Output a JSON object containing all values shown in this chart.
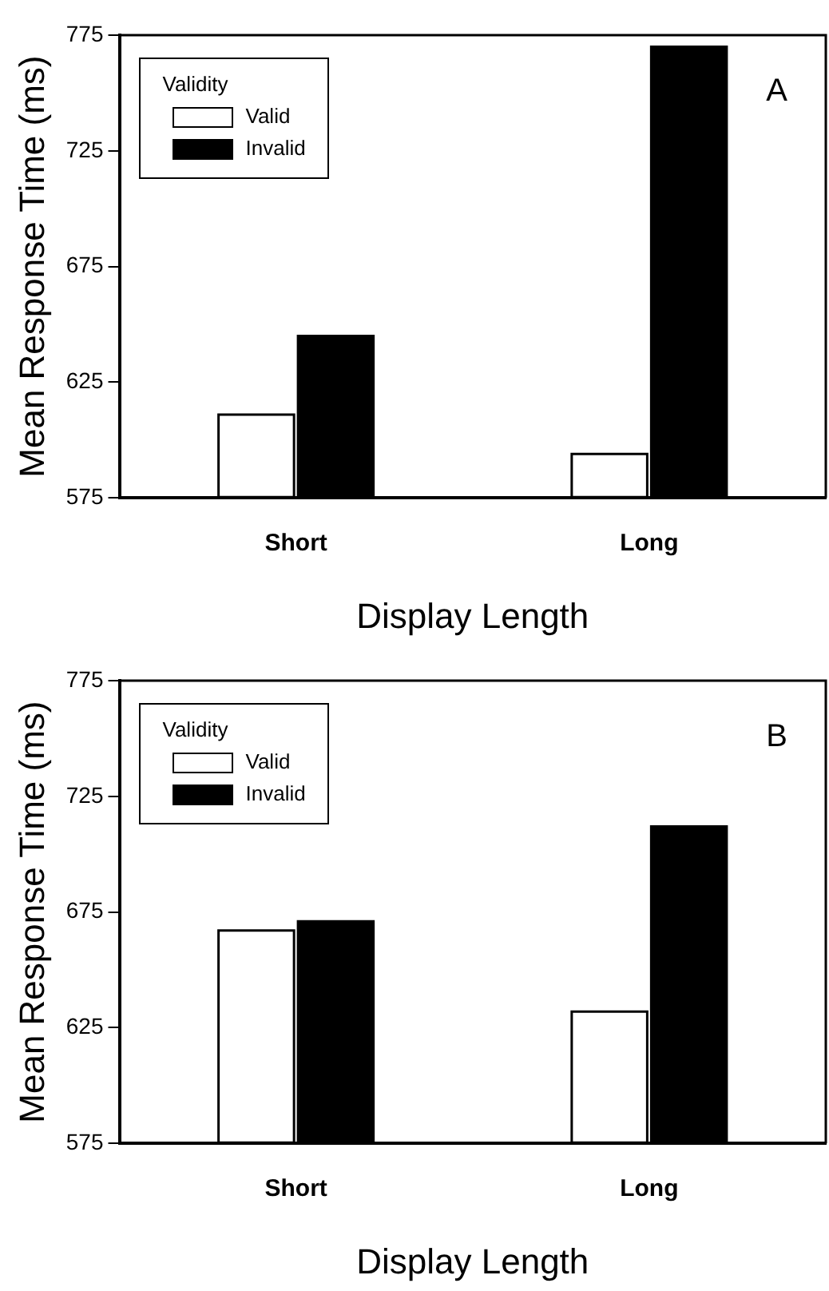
{
  "chart_data": [
    {
      "type": "bar",
      "categories": [
        "Short",
        "Long"
      ],
      "xlabel": "Display Length",
      "ylabel": "Mean Response Time (ms)",
      "legend_title": "Validity",
      "legend": "top left",
      "ylim": [
        575,
        775
      ],
      "yticks": [
        575,
        625,
        675,
        725,
        775
      ],
      "annotations": [
        "A"
      ],
      "series": [
        {
          "name": "Valid",
          "color": "#ffffff",
          "values": [
            611,
            594
          ]
        },
        {
          "name": "Invalid",
          "color": "#000000",
          "values": [
            645,
            770
          ]
        }
      ]
    },
    {
      "type": "bar",
      "categories": [
        "Short",
        "Long"
      ],
      "xlabel": "Display Length",
      "ylabel": "Mean Response Time (ms)",
      "legend_title": "Validity",
      "legend": "top left",
      "ylim": [
        575,
        775
      ],
      "yticks": [
        575,
        625,
        675,
        725,
        775
      ],
      "annotations": [
        "B"
      ],
      "series": [
        {
          "name": "Valid",
          "color": "#ffffff",
          "values": [
            667,
            632
          ]
        },
        {
          "name": "Invalid",
          "color": "#000000",
          "values": [
            671,
            712
          ]
        }
      ]
    }
  ]
}
